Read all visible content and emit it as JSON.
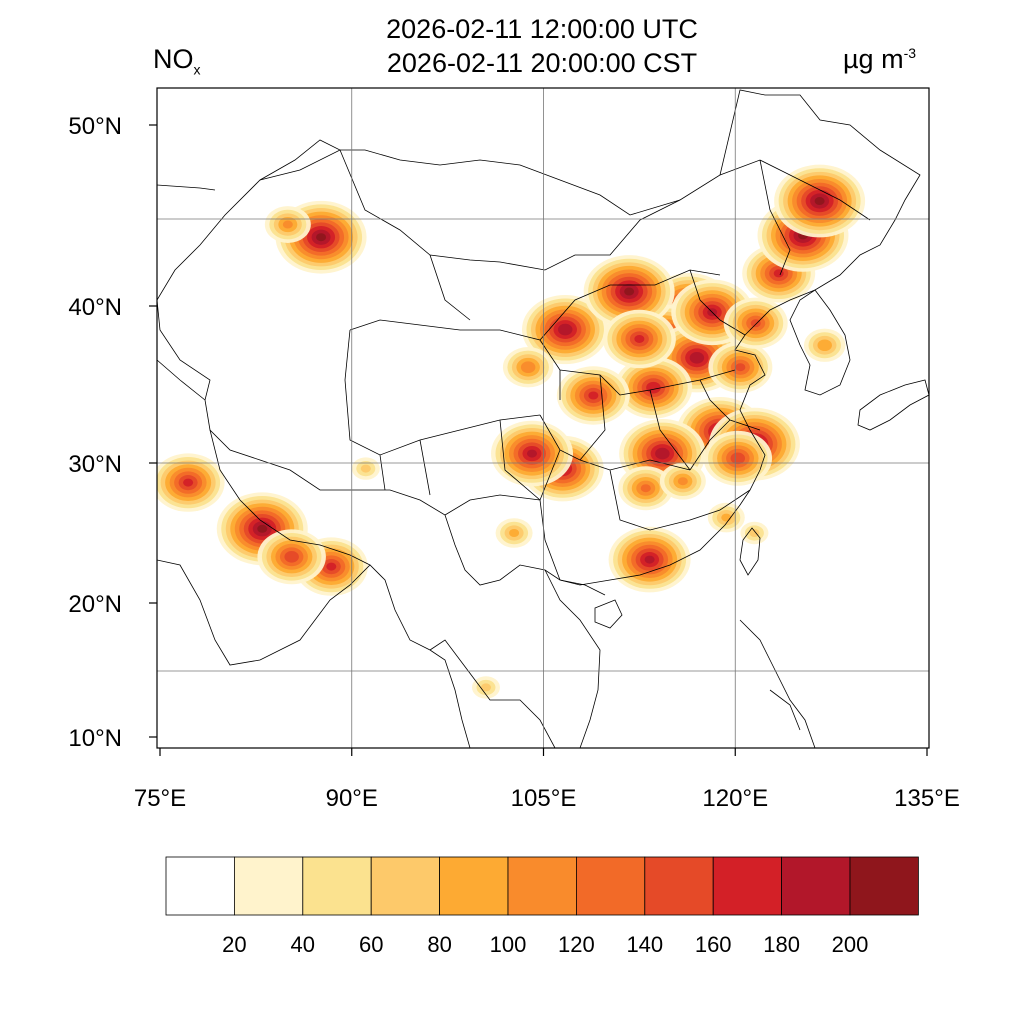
{
  "header": {
    "title_utc": "2026-02-11 12:00:00 UTC",
    "title_cst": "2026-02-11 20:00:00 CST",
    "species_main": "NO",
    "species_sub": "x",
    "units_main": "µg m",
    "units_sup": "-3"
  },
  "map": {
    "lat_labels": [
      "50°N",
      "40°N",
      "30°N",
      "20°N",
      "10°N"
    ],
    "lon_labels": [
      "75°E",
      "90°E",
      "105°E",
      "120°E",
      "135°E"
    ],
    "lat_values": [
      50,
      40,
      30,
      20,
      10
    ],
    "lon_values": [
      75,
      90,
      105,
      120,
      135
    ],
    "gridlines": true,
    "hotspots": [
      {
        "lon": 116.4,
        "lat": 39.9,
        "value": 190
      },
      {
        "lon": 117.2,
        "lat": 39.1,
        "value": 150
      },
      {
        "lon": 114.5,
        "lat": 38.0,
        "value": 180
      },
      {
        "lon": 117.0,
        "lat": 36.7,
        "value": 190
      },
      {
        "lon": 113.6,
        "lat": 34.8,
        "value": 170
      },
      {
        "lon": 118.8,
        "lat": 32.0,
        "value": 190
      },
      {
        "lon": 121.5,
        "lat": 31.2,
        "value": 200
      },
      {
        "lon": 120.2,
        "lat": 30.3,
        "value": 150
      },
      {
        "lon": 114.3,
        "lat": 30.6,
        "value": 190
      },
      {
        "lon": 106.5,
        "lat": 29.6,
        "value": 180
      },
      {
        "lon": 113.3,
        "lat": 23.1,
        "value": 180
      },
      {
        "lon": 106.7,
        "lat": 38.5,
        "value": 190
      },
      {
        "lon": 111.7,
        "lat": 40.8,
        "value": 200
      },
      {
        "lon": 123.4,
        "lat": 41.8,
        "value": 160
      },
      {
        "lon": 125.3,
        "lat": 43.9,
        "value": 200
      },
      {
        "lon": 126.6,
        "lat": 45.8,
        "value": 200
      },
      {
        "lon": 87.6,
        "lat": 43.8,
        "value": 200
      },
      {
        "lon": 85.0,
        "lat": 44.5,
        "value": 100
      },
      {
        "lon": 77.2,
        "lat": 28.6,
        "value": 160
      },
      {
        "lon": 83.0,
        "lat": 25.3,
        "value": 200
      },
      {
        "lon": 88.4,
        "lat": 22.6,
        "value": 160
      },
      {
        "lon": 85.3,
        "lat": 23.3,
        "value": 150
      },
      {
        "lon": 127.0,
        "lat": 37.5,
        "value": 90
      },
      {
        "lon": 100.5,
        "lat": 13.7,
        "value": 60
      },
      {
        "lon": 121.5,
        "lat": 25.0,
        "value": 60
      },
      {
        "lon": 103.8,
        "lat": 36.1,
        "value": 110
      },
      {
        "lon": 108.9,
        "lat": 34.3,
        "value": 160
      },
      {
        "lon": 118.2,
        "lat": 39.6,
        "value": 180
      },
      {
        "lon": 113.0,
        "lat": 28.2,
        "value": 120
      },
      {
        "lon": 115.9,
        "lat": 28.7,
        "value": 100
      },
      {
        "lon": 119.3,
        "lat": 26.1,
        "value": 80
      },
      {
        "lon": 104.1,
        "lat": 30.6,
        "value": 180
      },
      {
        "lon": 102.7,
        "lat": 25.0,
        "value": 80
      },
      {
        "lon": 91.1,
        "lat": 29.6,
        "value": 60
      },
      {
        "lon": 120.4,
        "lat": 36.1,
        "value": 140
      },
      {
        "lon": 112.5,
        "lat": 37.9,
        "value": 160
      },
      {
        "lon": 121.6,
        "lat": 38.9,
        "value": 140
      }
    ]
  },
  "colorbar": {
    "labels": [
      "20",
      "40",
      "60",
      "80",
      "100",
      "120",
      "140",
      "160",
      "180",
      "200"
    ],
    "colors": [
      "#ffffff",
      "#fff3cc",
      "#fbe28f",
      "#fdc96a",
      "#fdaa33",
      "#f98b2c",
      "#f26a28",
      "#e54a28",
      "#d32027",
      "#b2172a",
      "#8f161c"
    ]
  }
}
